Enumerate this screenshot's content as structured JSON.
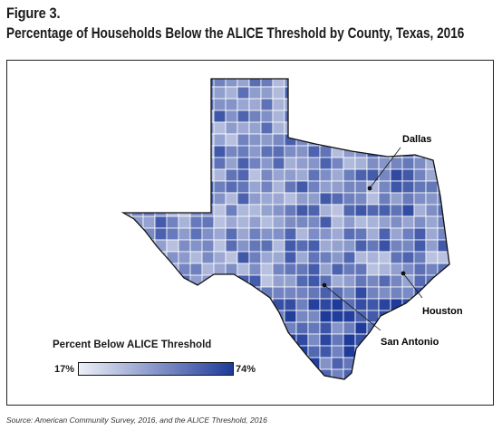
{
  "figure": {
    "label": "Figure 3.",
    "title": "Percentage of Households Below the ALICE Threshold by County, Texas, 2016",
    "source": "Source: American Community Survey, 2016, and the ALICE Threshold, 2016"
  },
  "legend": {
    "title": "Percent Below ALICE Threshold",
    "min_label": "17%",
    "max_label": "74%",
    "min_value": 17,
    "max_value": 74,
    "color_low": "#eef0f8",
    "color_high": "#1f3b9a"
  },
  "map": {
    "region": "Texas",
    "cities": [
      {
        "name": "Dallas"
      },
      {
        "name": "Houston"
      },
      {
        "name": "San Antonio"
      }
    ],
    "colors": {
      "outline": "#111111",
      "county_border": "#ffffff",
      "background": "#ffffff"
    }
  }
}
